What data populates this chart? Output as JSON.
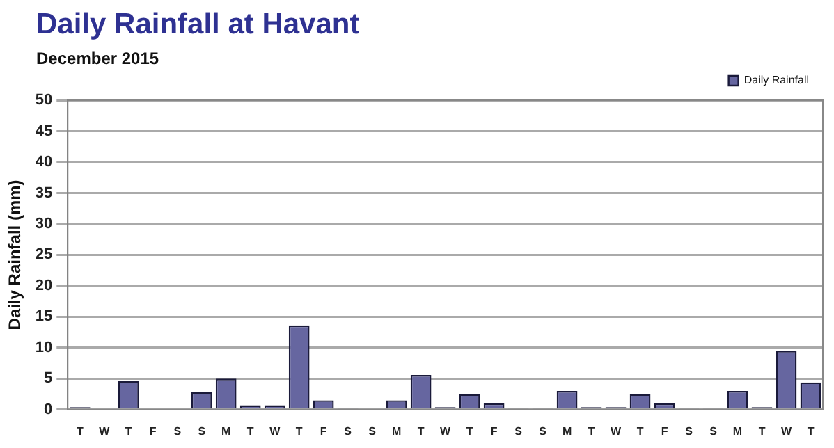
{
  "chart_data": {
    "type": "bar",
    "title": "Daily Rainfall at Havant",
    "subtitle": "December 2015",
    "ylabel": "Daily Rainfall (mm)",
    "categories": [
      "T",
      "W",
      "T",
      "F",
      "S",
      "S",
      "M",
      "T",
      "W",
      "T",
      "F",
      "S",
      "S",
      "M",
      "T",
      "W",
      "T",
      "F",
      "S",
      "S",
      "M",
      "T",
      "W",
      "T",
      "F",
      "S",
      "S",
      "M",
      "T",
      "W",
      "T"
    ],
    "series": [
      {
        "name": "Daily Rainfall",
        "color": "#6666a0",
        "values": [
          0.4,
          0,
          4.6,
          0,
          0,
          2.8,
          5.0,
          0.7,
          0.7,
          13.6,
          1.5,
          0.2,
          0,
          1.5,
          5.6,
          0.4,
          2.5,
          1.0,
          0.2,
          0.2,
          3.0,
          0.4,
          0.4,
          2.5,
          1.0,
          0.2,
          0.2,
          3.0,
          0.4,
          9.5,
          4.4
        ]
      }
    ],
    "ylim": [
      0,
      50
    ],
    "yticks": [
      0,
      5,
      10,
      15,
      20,
      25,
      30,
      35,
      40,
      45,
      50
    ],
    "grid": "y",
    "legend": "top right"
  }
}
